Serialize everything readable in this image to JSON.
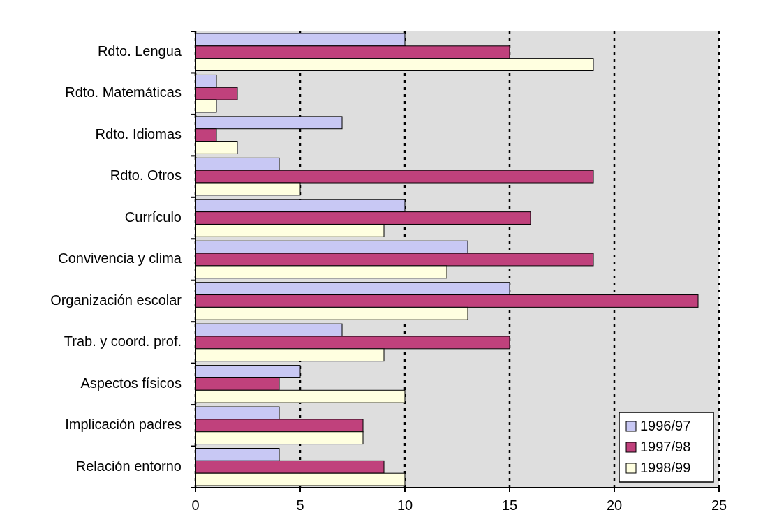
{
  "chart_data": {
    "type": "bar",
    "orientation": "horizontal",
    "categories": [
      "Rdto. Lengua",
      "Rdto. Matemáticas",
      "Rdto. Idiomas",
      "Rdto. Otros",
      "Currículo",
      "Convivencia y clima",
      "Organización escolar",
      "Trab. y coord. prof.",
      "Aspectos físicos",
      "Implicación padres",
      "Relación entorno"
    ],
    "series": [
      {
        "name": "1996/97",
        "color": "#c8c8f4",
        "values": [
          10,
          1,
          7,
          4,
          10,
          13,
          15,
          7,
          5,
          4,
          4
        ]
      },
      {
        "name": "1997/98",
        "color": "#c0417c",
        "values": [
          15,
          2,
          1,
          19,
          16,
          19,
          24,
          15,
          4,
          8,
          9
        ]
      },
      {
        "name": "1998/99",
        "color": "#ffffe0",
        "values": [
          19,
          1,
          2,
          5,
          9,
          12,
          13,
          9,
          10,
          8,
          10
        ]
      }
    ],
    "xlim": [
      0,
      25
    ],
    "xticks": [
      0,
      5,
      10,
      15,
      20,
      25
    ],
    "grid": "x",
    "legend": "bottom right"
  }
}
